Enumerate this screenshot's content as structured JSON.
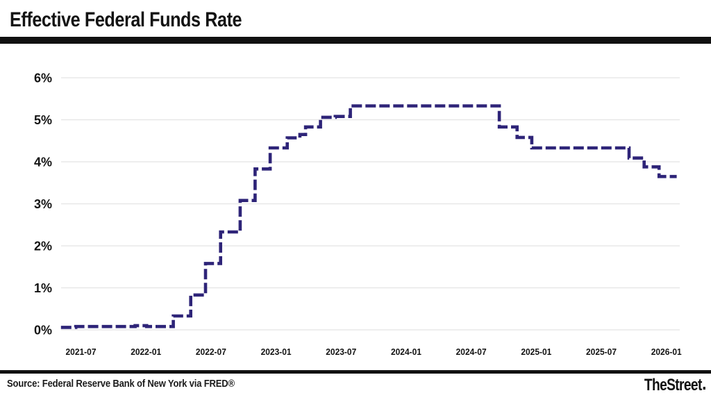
{
  "header": {
    "title": "Effective Federal Funds Rate"
  },
  "footer": {
    "source": "Source: Federal Reserve Bank of New York via FRED®",
    "brand": "TheStreet"
  },
  "colors": {
    "line": "#2e2478",
    "grid": "#e4e4e4",
    "divider": "#111111",
    "text": "#131313",
    "background": "#ffffff"
  },
  "chart_data": {
    "type": "line",
    "subtype": "step-after",
    "line_style": "dashed",
    "title": "Effective Federal Funds Rate",
    "xlabel": "",
    "ylabel": "",
    "unit": "%",
    "ylim": [
      0,
      6
    ],
    "grid": "horizontal",
    "legend": "none",
    "y_ticks": [
      "0%",
      "1%",
      "2%",
      "3%",
      "4%",
      "5%",
      "6%"
    ],
    "x_ticks": [
      "2021-07",
      "2022-01",
      "2022-07",
      "2023-01",
      "2023-07",
      "2024-01",
      "2024-07",
      "2025-01",
      "2025-07",
      "2026-01"
    ],
    "series": [
      {
        "name": "Effective Federal Funds Rate (%)",
        "points": [
          [
            "2021-05-06",
            0.06
          ],
          [
            "2021-06-17",
            0.08
          ],
          [
            "2021-12-01",
            0.1
          ],
          [
            "2022-01-03",
            0.08
          ],
          [
            "2022-03-17",
            0.33
          ],
          [
            "2022-05-05",
            0.83
          ],
          [
            "2022-06-16",
            1.58
          ],
          [
            "2022-07-28",
            2.33
          ],
          [
            "2022-09-22",
            3.08
          ],
          [
            "2022-11-03",
            3.83
          ],
          [
            "2022-12-15",
            4.33
          ],
          [
            "2023-02-02",
            4.57
          ],
          [
            "2023-03-07",
            4.65
          ],
          [
            "2023-03-23",
            4.83
          ],
          [
            "2023-05-04",
            5.06
          ],
          [
            "2023-06-15",
            5.08
          ],
          [
            "2023-07-27",
            5.33
          ],
          [
            "2024-09-19",
            4.83
          ],
          [
            "2024-11-08",
            4.58
          ],
          [
            "2024-12-19",
            4.33
          ],
          [
            "2025-09-18",
            4.09
          ],
          [
            "2025-10-30",
            3.88
          ],
          [
            "2025-12-11",
            3.65
          ],
          [
            "2026-01-30",
            3.65
          ]
        ]
      }
    ]
  }
}
